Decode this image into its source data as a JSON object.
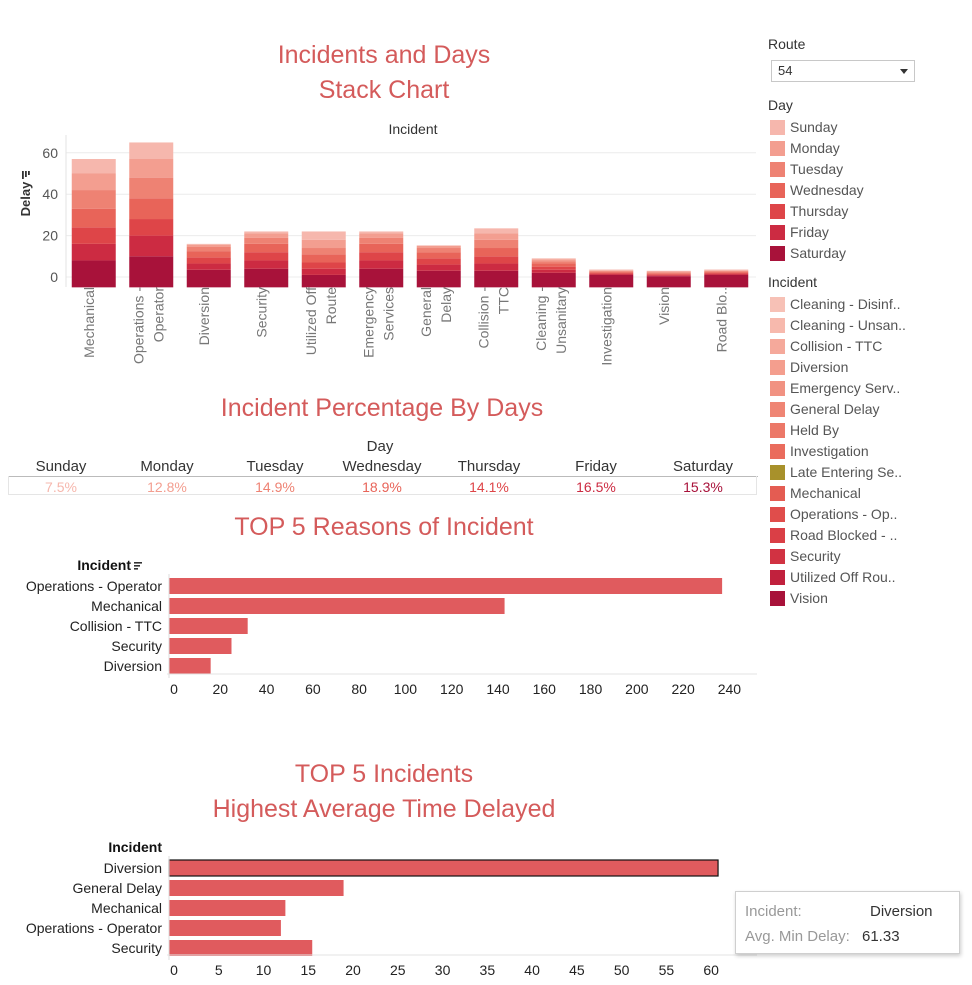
{
  "titles": {
    "stack_line1": "Incidents and Days",
    "stack_line2": "Stack Chart",
    "pct": "Incident Percentage By Days",
    "top5": "TOP 5 Reasons of Incident",
    "avg_line1": "TOP 5 Incidents",
    "avg_line2": "Highest Average Time Delayed"
  },
  "filter": {
    "label": "Route",
    "selected": "54"
  },
  "legend_day": {
    "title": "Day",
    "items": [
      {
        "label": "Sunday",
        "color": "#f6b7ad"
      },
      {
        "label": "Monday",
        "color": "#f39e90"
      },
      {
        "label": "Tuesday",
        "color": "#ee8273"
      },
      {
        "label": "Wednesday",
        "color": "#e86459"
      },
      {
        "label": "Thursday",
        "color": "#de4548"
      },
      {
        "label": "Friday",
        "color": "#cc2b42"
      },
      {
        "label": "Saturday",
        "color": "#a8123a"
      }
    ]
  },
  "legend_incident": {
    "title": "Incident",
    "items": [
      {
        "label": "Cleaning - Disinf..",
        "color": "#f7c1b6"
      },
      {
        "label": "Cleaning - Unsan..",
        "color": "#f7b9ad"
      },
      {
        "label": "Collision - TTC",
        "color": "#f5a99b"
      },
      {
        "label": "Diversion",
        "color": "#f49e8e"
      },
      {
        "label": "Emergency Serv..",
        "color": "#f19282"
      },
      {
        "label": "General Delay",
        "color": "#ef8574"
      },
      {
        "label": "Held By",
        "color": "#ec7868"
      },
      {
        "label": "Investigation",
        "color": "#ea6c5d"
      },
      {
        "label": "Late Entering Se..",
        "color": "#a8912b"
      },
      {
        "label": "Mechanical",
        "color": "#e45c52"
      },
      {
        "label": "Operations - Op..",
        "color": "#e04d4b"
      },
      {
        "label": "Road Blocked - ..",
        "color": "#da3f46"
      },
      {
        "label": "Security",
        "color": "#d13242"
      },
      {
        "label": "Utilized Off Rou..",
        "color": "#c1213d"
      },
      {
        "label": "Vision",
        "color": "#a8123a"
      }
    ]
  },
  "pct_table": {
    "header": "Day",
    "days": [
      "Sunday",
      "Monday",
      "Tuesday",
      "Wednesday",
      "Thursday",
      "Friday",
      "Saturday"
    ],
    "values": [
      "7.5%",
      "12.8%",
      "14.9%",
      "18.9%",
      "14.1%",
      "16.5%",
      "15.3%"
    ],
    "colors": [
      "#f6b7ad",
      "#f39e90",
      "#ee8273",
      "#e86459",
      "#de4548",
      "#cc2b42",
      "#a8123a"
    ]
  },
  "tooltip": {
    "incident_label": "Incident:",
    "incident_value": "Diversion",
    "delay_label": "Avg. Min Delay:",
    "delay_value": "61.33"
  },
  "chart_data": [
    {
      "type": "bar",
      "stacked": true,
      "column_header": "Incident",
      "ylabel": "Delay",
      "ylim": [
        -5,
        65
      ],
      "yticks": [
        0,
        20,
        40,
        60
      ],
      "categories": [
        "Mechanical",
        "Operations - Operator",
        "Diversion",
        "Security",
        "Utilized Off Route",
        "Emergency Services",
        "General Delay",
        "Collision - TTC",
        "Cleaning - Unsanitary",
        "Investigation",
        "Vision",
        "Road Blo.."
      ],
      "tick_labels": [
        [
          "Mechanical"
        ],
        [
          "Operations -",
          "Operator"
        ],
        [
          "Diversion"
        ],
        [
          "Security"
        ],
        [
          "Utilized Off",
          "Route"
        ],
        [
          "Emergency",
          "Services"
        ],
        [
          "General",
          "Delay"
        ],
        [
          "Collision -",
          "TTC"
        ],
        [
          "Cleaning -",
          "Unsanitary"
        ],
        [
          "Investigation"
        ],
        [
          "Vision"
        ],
        [
          "Road Blo.."
        ]
      ],
      "series": [
        {
          "name": "Sunday",
          "values": [
            7,
            8,
            0.5,
            1,
            4,
            1,
            0.3,
            2.5,
            0.5,
            0.3,
            0.3,
            0.3
          ]
        },
        {
          "name": "Monday",
          "values": [
            8,
            9,
            1,
            2,
            4,
            2,
            1,
            3,
            1,
            0.3,
            0.4,
            0.3
          ]
        },
        {
          "name": "Tuesday",
          "values": [
            9,
            10,
            2,
            3,
            3,
            3,
            2,
            4,
            1,
            0.5,
            0.5,
            0.5
          ]
        },
        {
          "name": "Wednesday",
          "values": [
            9,
            10,
            3,
            4,
            4,
            4,
            3,
            4,
            1.5,
            0.5,
            0.5,
            0.5
          ]
        },
        {
          "name": "Thursday",
          "values": [
            8,
            8,
            3,
            4,
            3,
            4,
            3,
            3.5,
            1.5,
            0.5,
            0.5,
            0.5
          ]
        },
        {
          "name": "Friday",
          "values": [
            8,
            10,
            3,
            4,
            3,
            4,
            3,
            3.5,
            1.5,
            0.5,
            0.4,
            0.5
          ]
        },
        {
          "name": "Saturday",
          "values": [
            8,
            10,
            3.5,
            4,
            1,
            4,
            3,
            3,
            2,
            1,
            0.4,
            1
          ]
        }
      ]
    },
    {
      "type": "bar",
      "orientation": "horizontal",
      "title": "TOP 5 Reasons of Incident",
      "ylabel": "Incident",
      "categories": [
        "Operations - Operator",
        "Mechanical",
        "Collision - TTC",
        "Security",
        "Diversion"
      ],
      "values": [
        239,
        145,
        34,
        27,
        18
      ],
      "xlim": [
        0,
        245
      ],
      "xticks": [
        0,
        20,
        40,
        60,
        80,
        100,
        120,
        140,
        160,
        180,
        200,
        220,
        240
      ],
      "color": "#e05b5e"
    },
    {
      "type": "bar",
      "orientation": "horizontal",
      "title": "Highest Average Time Delayed",
      "ylabel": "Incident",
      "categories": [
        "Diversion",
        "General Delay",
        "Mechanical",
        "Operations - Operator",
        "Security"
      ],
      "values": [
        61.33,
        19.5,
        13,
        12.5,
        16
      ],
      "xlim": [
        0,
        63
      ],
      "xticks": [
        0,
        5,
        10,
        15,
        20,
        25,
        30,
        35,
        40,
        45,
        50,
        55,
        60
      ],
      "highlight": "Diversion",
      "color": "#e05b5e"
    }
  ]
}
